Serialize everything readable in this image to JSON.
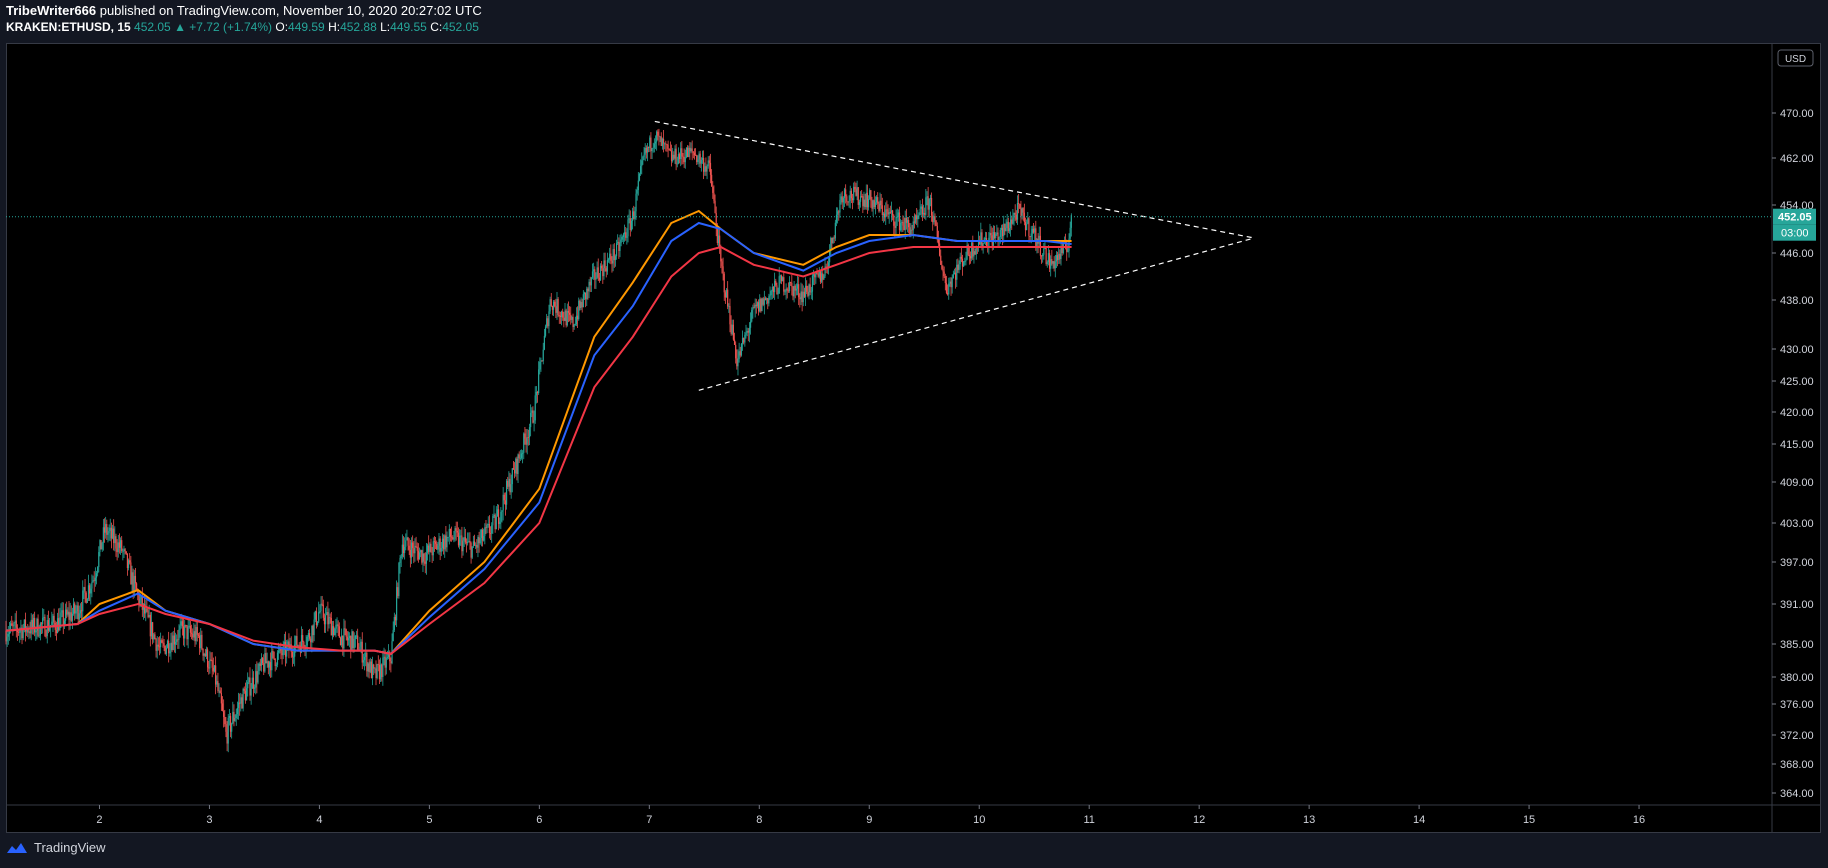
{
  "header": {
    "author": "TribeWriter666",
    "published_text": "published on TradingView.com, November 10, 2020 20:27:02 UTC",
    "symbol": "KRAKEN:ETHUSD, 15",
    "price": "452.05",
    "change": "▲ +7.72 (+1.74%)",
    "o_label": "O:",
    "o_value": "449.59",
    "h_label": "H:",
    "h_value": "452.88",
    "l_label": "L:",
    "l_value": "449.55",
    "c_label": "C:",
    "c_value": "452.05"
  },
  "footer": {
    "brand": "TradingView"
  },
  "price_axis": {
    "currency": "USD",
    "last_price": "452.05",
    "countdown": "03:00"
  },
  "colors": {
    "background": "#000000",
    "frame": "#131722",
    "up": "#26a69a",
    "down": "#ef5350",
    "ema_fast": "#ff9800",
    "ema_mid": "#2962ff",
    "ema_slow": "#f23645",
    "last_price": "#26a69a"
  },
  "chart_data": {
    "type": "candlestick",
    "y_ticks": [
      "470.00",
      "462.00",
      "454.00",
      "446.00",
      "438.00",
      "430.00",
      "425.00",
      "420.00",
      "415.00",
      "409.00",
      "403.00",
      "397.00",
      "391.00",
      "385.00",
      "380.00",
      "376.00",
      "372.00",
      "368.00",
      "364.00"
    ],
    "y_tick_values": [
      470,
      462,
      454,
      446,
      438,
      430,
      425,
      420,
      415,
      409,
      403,
      397,
      391,
      385,
      380,
      376,
      372,
      368,
      364
    ],
    "x_ticks": [
      "2",
      "3",
      "4",
      "5",
      "6",
      "7",
      "8",
      "9",
      "10",
      "11",
      "12",
      "13",
      "14",
      "15",
      "16"
    ],
    "x_tick_days": [
      2,
      3,
      4,
      5,
      6,
      7,
      8,
      9,
      10,
      11,
      12,
      13,
      14,
      15,
      16
    ],
    "x_range_days": [
      1.15,
      17.2
    ],
    "last_price": 452.05,
    "close_path": [
      [
        1.15,
        387
      ],
      [
        1.4,
        387.5
      ],
      [
        1.6,
        388
      ],
      [
        1.8,
        390
      ],
      [
        1.95,
        395
      ],
      [
        2.05,
        402
      ],
      [
        2.2,
        399
      ],
      [
        2.35,
        392
      ],
      [
        2.55,
        384
      ],
      [
        2.75,
        387
      ],
      [
        2.9,
        386
      ],
      [
        3.05,
        380
      ],
      [
        3.15,
        372
      ],
      [
        3.3,
        377
      ],
      [
        3.5,
        382
      ],
      [
        3.7,
        384
      ],
      [
        3.9,
        386
      ],
      [
        4.0,
        390
      ],
      [
        4.2,
        386
      ],
      [
        4.35,
        385
      ],
      [
        4.5,
        380
      ],
      [
        4.65,
        383
      ],
      [
        4.75,
        400
      ],
      [
        4.95,
        398
      ],
      [
        5.2,
        401
      ],
      [
        5.4,
        399
      ],
      [
        5.6,
        403
      ],
      [
        5.8,
        412
      ],
      [
        5.95,
        420
      ],
      [
        6.1,
        438
      ],
      [
        6.3,
        434
      ],
      [
        6.5,
        442
      ],
      [
        6.7,
        446
      ],
      [
        6.85,
        452
      ],
      [
        6.95,
        462
      ],
      [
        7.05,
        466
      ],
      [
        7.2,
        462
      ],
      [
        7.4,
        463
      ],
      [
        7.55,
        460
      ],
      [
        7.65,
        444
      ],
      [
        7.8,
        428
      ],
      [
        7.95,
        436
      ],
      [
        8.2,
        441
      ],
      [
        8.4,
        439
      ],
      [
        8.6,
        443
      ],
      [
        8.75,
        456
      ],
      [
        9.0,
        455
      ],
      [
        9.2,
        452
      ],
      [
        9.4,
        450
      ],
      [
        9.55,
        455
      ],
      [
        9.7,
        440
      ],
      [
        9.85,
        445
      ],
      [
        10.0,
        448
      ],
      [
        10.2,
        449
      ],
      [
        10.35,
        453
      ],
      [
        10.5,
        449
      ],
      [
        10.65,
        444
      ],
      [
        10.8,
        447
      ],
      [
        10.84,
        452.05
      ]
    ],
    "series": [
      {
        "values": [
          [
            1.15,
            387
          ],
          [
            1.8,
            388
          ],
          [
            2.0,
            391
          ],
          [
            2.35,
            393
          ],
          [
            2.6,
            390
          ],
          [
            3.0,
            388
          ],
          [
            3.4,
            385
          ],
          [
            3.8,
            384
          ],
          [
            4.2,
            384
          ],
          [
            4.5,
            384
          ],
          [
            4.65,
            383.5
          ],
          [
            5.0,
            390
          ],
          [
            5.5,
            397
          ],
          [
            6.0,
            408
          ],
          [
            6.5,
            432
          ],
          [
            6.85,
            441
          ],
          [
            7.2,
            451
          ],
          [
            7.45,
            453
          ],
          [
            7.65,
            450
          ],
          [
            7.95,
            446
          ],
          [
            8.4,
            444
          ],
          [
            8.7,
            447
          ],
          [
            9.0,
            449
          ],
          [
            9.4,
            449
          ],
          [
            9.8,
            448
          ],
          [
            10.2,
            448
          ],
          [
            10.6,
            448
          ],
          [
            10.84,
            448
          ]
        ]
      },
      {
        "values": [
          [
            1.15,
            387
          ],
          [
            1.8,
            388
          ],
          [
            2.0,
            390
          ],
          [
            2.35,
            392.5
          ],
          [
            2.6,
            390
          ],
          [
            3.0,
            388
          ],
          [
            3.4,
            385
          ],
          [
            3.8,
            384
          ],
          [
            4.2,
            384
          ],
          [
            4.5,
            384
          ],
          [
            4.65,
            383.5
          ],
          [
            5.0,
            389
          ],
          [
            5.5,
            396
          ],
          [
            6.0,
            406
          ],
          [
            6.5,
            429
          ],
          [
            6.85,
            437
          ],
          [
            7.2,
            448
          ],
          [
            7.45,
            451
          ],
          [
            7.65,
            450
          ],
          [
            7.95,
            446
          ],
          [
            8.4,
            443
          ],
          [
            8.7,
            446
          ],
          [
            9.0,
            448
          ],
          [
            9.4,
            449
          ],
          [
            9.8,
            448
          ],
          [
            10.2,
            448
          ],
          [
            10.6,
            448
          ],
          [
            10.84,
            447.5
          ]
        ]
      },
      {
        "values": [
          [
            1.15,
            387
          ],
          [
            1.8,
            388
          ],
          [
            2.0,
            389.5
          ],
          [
            2.35,
            391
          ],
          [
            2.6,
            389.5
          ],
          [
            3.0,
            388
          ],
          [
            3.4,
            385.5
          ],
          [
            3.8,
            384.5
          ],
          [
            4.2,
            384
          ],
          [
            4.5,
            384
          ],
          [
            4.65,
            383.5
          ],
          [
            5.0,
            388
          ],
          [
            5.5,
            394
          ],
          [
            6.0,
            403
          ],
          [
            6.5,
            424
          ],
          [
            6.85,
            432
          ],
          [
            7.2,
            442
          ],
          [
            7.45,
            446
          ],
          [
            7.65,
            447
          ],
          [
            7.95,
            444
          ],
          [
            8.4,
            442
          ],
          [
            8.7,
            444
          ],
          [
            9.0,
            446
          ],
          [
            9.4,
            447
          ],
          [
            9.8,
            447
          ],
          [
            10.2,
            447
          ],
          [
            10.6,
            447
          ],
          [
            10.84,
            447
          ]
        ]
      }
    ],
    "trendlines": [
      {
        "from": [
          7.05,
          468.5
        ],
        "to": [
          12.5,
          448.5
        ]
      },
      {
        "from": [
          7.45,
          423.5
        ],
        "to": [
          12.5,
          448.5
        ]
      }
    ]
  }
}
